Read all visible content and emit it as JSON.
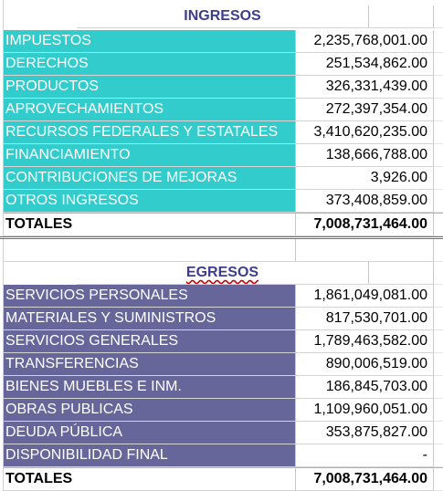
{
  "ingresos": {
    "title": "INGRESOS",
    "rows": [
      {
        "label": "IMPUESTOS",
        "value": "2,235,768,001.00"
      },
      {
        "label": "DERECHOS",
        "value": "251,534,862.00"
      },
      {
        "label": "PRODUCTOS",
        "value": "326,331,439.00"
      },
      {
        "label": "APROVECHAMIENTOS",
        "value": "272,397,354.00"
      },
      {
        "label": "RECURSOS FEDERALES Y ESTATALES",
        "value": "3,410,620,235.00"
      },
      {
        "label": "FINANCIAMIENTO",
        "value": "138,666,788.00"
      },
      {
        "label": "CONTRIBUCIONES DE MEJORAS",
        "value": "3,926.00"
      },
      {
        "label": "OTROS INGRESOS",
        "value": "373,408,859.00"
      }
    ],
    "total_label": "TOTALES",
    "total_value": "7,008,731,464.00"
  },
  "egresos": {
    "title": "EGRESOS",
    "rows": [
      {
        "label": "SERVICIOS PERSONALES",
        "value": "1,861,049,081.00"
      },
      {
        "label": "MATERIALES Y SUMINISTROS",
        "value": "817,530,701.00"
      },
      {
        "label": "SERVICIOS GENERALES",
        "value": "1,789,463,582.00"
      },
      {
        "label": "TRANSFERENCIAS",
        "value": "890,006,519.00"
      },
      {
        "label": "BIENES MUEBLES E INM.",
        "value": "186,845,703.00"
      },
      {
        "label": "OBRAS PUBLICAS",
        "value": "1,109,960,051.00"
      },
      {
        "label": "DEUDA PÚBLICA",
        "value": "353,875,827.00"
      },
      {
        "label": "DISPONIBILIDAD FINAL",
        "value": "-"
      }
    ],
    "total_label": "TOTALES",
    "total_value": "7,008,731,464.00"
  }
}
